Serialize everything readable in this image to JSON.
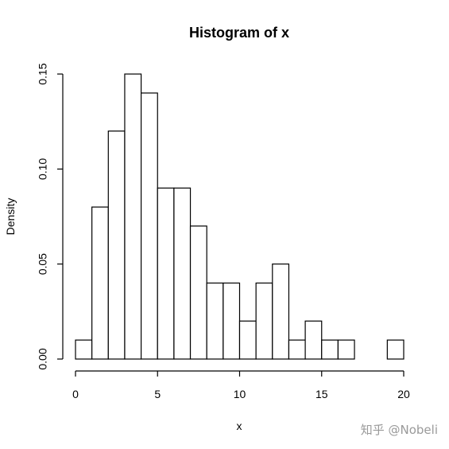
{
  "chart_data": {
    "type": "bar",
    "title": "Histogram of x",
    "xlabel": "x",
    "ylabel": "Density",
    "bin_width": 1,
    "bins": [
      {
        "start": 0,
        "end": 1,
        "value": 0.01
      },
      {
        "start": 1,
        "end": 2,
        "value": 0.08
      },
      {
        "start": 2,
        "end": 3,
        "value": 0.12
      },
      {
        "start": 3,
        "end": 4,
        "value": 0.15
      },
      {
        "start": 4,
        "end": 5,
        "value": 0.14
      },
      {
        "start": 5,
        "end": 6,
        "value": 0.09
      },
      {
        "start": 6,
        "end": 7,
        "value": 0.09
      },
      {
        "start": 7,
        "end": 8,
        "value": 0.07
      },
      {
        "start": 8,
        "end": 9,
        "value": 0.04
      },
      {
        "start": 9,
        "end": 10,
        "value": 0.04
      },
      {
        "start": 10,
        "end": 11,
        "value": 0.02
      },
      {
        "start": 11,
        "end": 12,
        "value": 0.04
      },
      {
        "start": 12,
        "end": 13,
        "value": 0.05
      },
      {
        "start": 13,
        "end": 14,
        "value": 0.01
      },
      {
        "start": 14,
        "end": 15,
        "value": 0.02
      },
      {
        "start": 15,
        "end": 16,
        "value": 0.01
      },
      {
        "start": 16,
        "end": 17,
        "value": 0.01
      },
      {
        "start": 17,
        "end": 18,
        "value": 0.0
      },
      {
        "start": 18,
        "end": 19,
        "value": 0.0
      },
      {
        "start": 19,
        "end": 20,
        "value": 0.01
      }
    ],
    "xlim": [
      0,
      20
    ],
    "ylim": [
      0,
      0.15
    ],
    "x_ticks": [
      0,
      5,
      10,
      15,
      20
    ],
    "x_tick_labels": [
      "0",
      "5",
      "10",
      "15",
      "20"
    ],
    "y_ticks": [
      0,
      0.05,
      0.1,
      0.15
    ],
    "y_tick_labels": [
      "0.00",
      "0.05",
      "0.10",
      "0.15"
    ],
    "grid": false,
    "legend": "none"
  },
  "watermark": {
    "text": "知乎 @Nobeli"
  }
}
